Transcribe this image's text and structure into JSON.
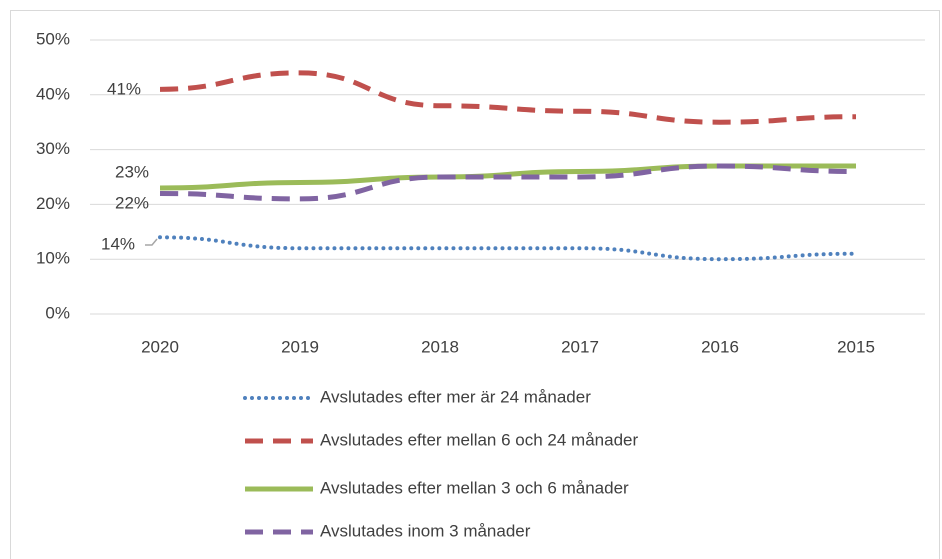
{
  "chart_data": {
    "type": "line",
    "categories": [
      "2020",
      "2019",
      "2018",
      "2017",
      "2016",
      "2015"
    ],
    "ylim": [
      0,
      50
    ],
    "yticks": [
      {
        "value": 0,
        "label": "0%"
      },
      {
        "value": 10,
        "label": "10%"
      },
      {
        "value": 20,
        "label": "20%"
      },
      {
        "value": 30,
        "label": "30%"
      },
      {
        "value": 40,
        "label": "40%"
      },
      {
        "value": 50,
        "label": "50%"
      }
    ],
    "grid": true,
    "legend": "bottom",
    "series": [
      {
        "name": "Avslutades efter mer är 24 månader",
        "color": "#4f81bd",
        "style": "dotted",
        "values": [
          14,
          12,
          12,
          12,
          10,
          11
        ],
        "value_labels": [
          "14%",
          null,
          null,
          null,
          null,
          null
        ]
      },
      {
        "name": "Avslutades efter mellan 6 och 24 månader",
        "color": "#c0504d",
        "style": "dashed",
        "values": [
          41,
          44,
          38,
          37,
          35,
          36
        ],
        "value_labels": [
          "41%",
          null,
          null,
          null,
          null,
          null
        ]
      },
      {
        "name": "Avslutades efter mellan 3 och 6 månader",
        "color": "#9bbb59",
        "style": "solid",
        "values": [
          23,
          24,
          25,
          26,
          27,
          27
        ],
        "value_labels": [
          "23%",
          null,
          null,
          null,
          null,
          null
        ]
      },
      {
        "name": "Avslutades inom 3 månader",
        "color": "#8064a2",
        "style": "dashed",
        "values": [
          22,
          21,
          25,
          25,
          27,
          26
        ],
        "value_labels": [
          "22%",
          null,
          null,
          null,
          null,
          null
        ]
      }
    ]
  }
}
